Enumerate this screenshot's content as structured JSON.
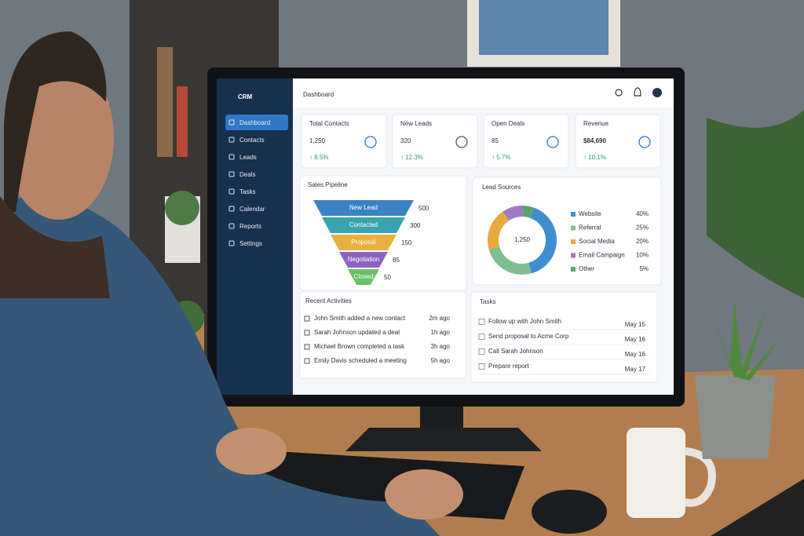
{
  "sidebar": {
    "logo": "CRM",
    "menu": [
      "Dashboard",
      "Contacts",
      "Leads",
      "Deals",
      "Tasks",
      "Calendar",
      "Reports",
      "Settings"
    ]
  },
  "header": {
    "title": "Dashboard"
  },
  "stats": [
    {
      "label": "Total Contacts",
      "value": "1,250",
      "change": "↑ 8.5%"
    },
    {
      "label": "New Leads",
      "value": "320",
      "change": "↑ 12.3%"
    },
    {
      "label": "Open Deals",
      "value": "85",
      "change": "↑ 5.7%"
    },
    {
      "label": "Revenue",
      "value": "$84,690",
      "change": "↑ 10.1%"
    }
  ],
  "pipeline": {
    "title": "Sales Pipeline",
    "stages": [
      {
        "label": "New Lead",
        "value": 500
      },
      {
        "label": "Contacted",
        "value": 300
      },
      {
        "label": "Proposal",
        "value": 150
      },
      {
        "label": "Negotiation",
        "value": 85
      },
      {
        "label": "Closed",
        "value": 50
      }
    ]
  },
  "lead_sources": {
    "title": "Lead Sources",
    "total": "1,250",
    "categories": [
      "Website",
      "Referral",
      "Social Media",
      "Email Campaign",
      "Other"
    ],
    "values": [
      40,
      25,
      20,
      10,
      5
    ],
    "value_labels": [
      "40%",
      "25%",
      "20%",
      "10%",
      "5%"
    ],
    "colors": [
      "#3f8fd0",
      "#7fbf8f",
      "#e8a93f",
      "#9c7bc4",
      "#5aa469"
    ]
  },
  "activities": {
    "title": "Recent Activities",
    "items": [
      {
        "text": "John Smith added a new contact",
        "time": "2m ago"
      },
      {
        "text": "Sarah Johnson updated a deal",
        "time": "1h ago"
      },
      {
        "text": "Michael Brown completed a task",
        "time": "3h ago"
      },
      {
        "text": "Emily Davis scheduled a meeting",
        "time": "5h ago"
      }
    ]
  },
  "tasks": {
    "title": "Tasks",
    "items": [
      {
        "text": "Follow up with John Smith",
        "date": "May 15"
      },
      {
        "text": "Send proposal to Acme Corp",
        "date": "May 16"
      },
      {
        "text": "Call Sarah Johnson",
        "date": "May 16"
      },
      {
        "text": "Prepare report",
        "date": "May 17"
      }
    ]
  }
}
